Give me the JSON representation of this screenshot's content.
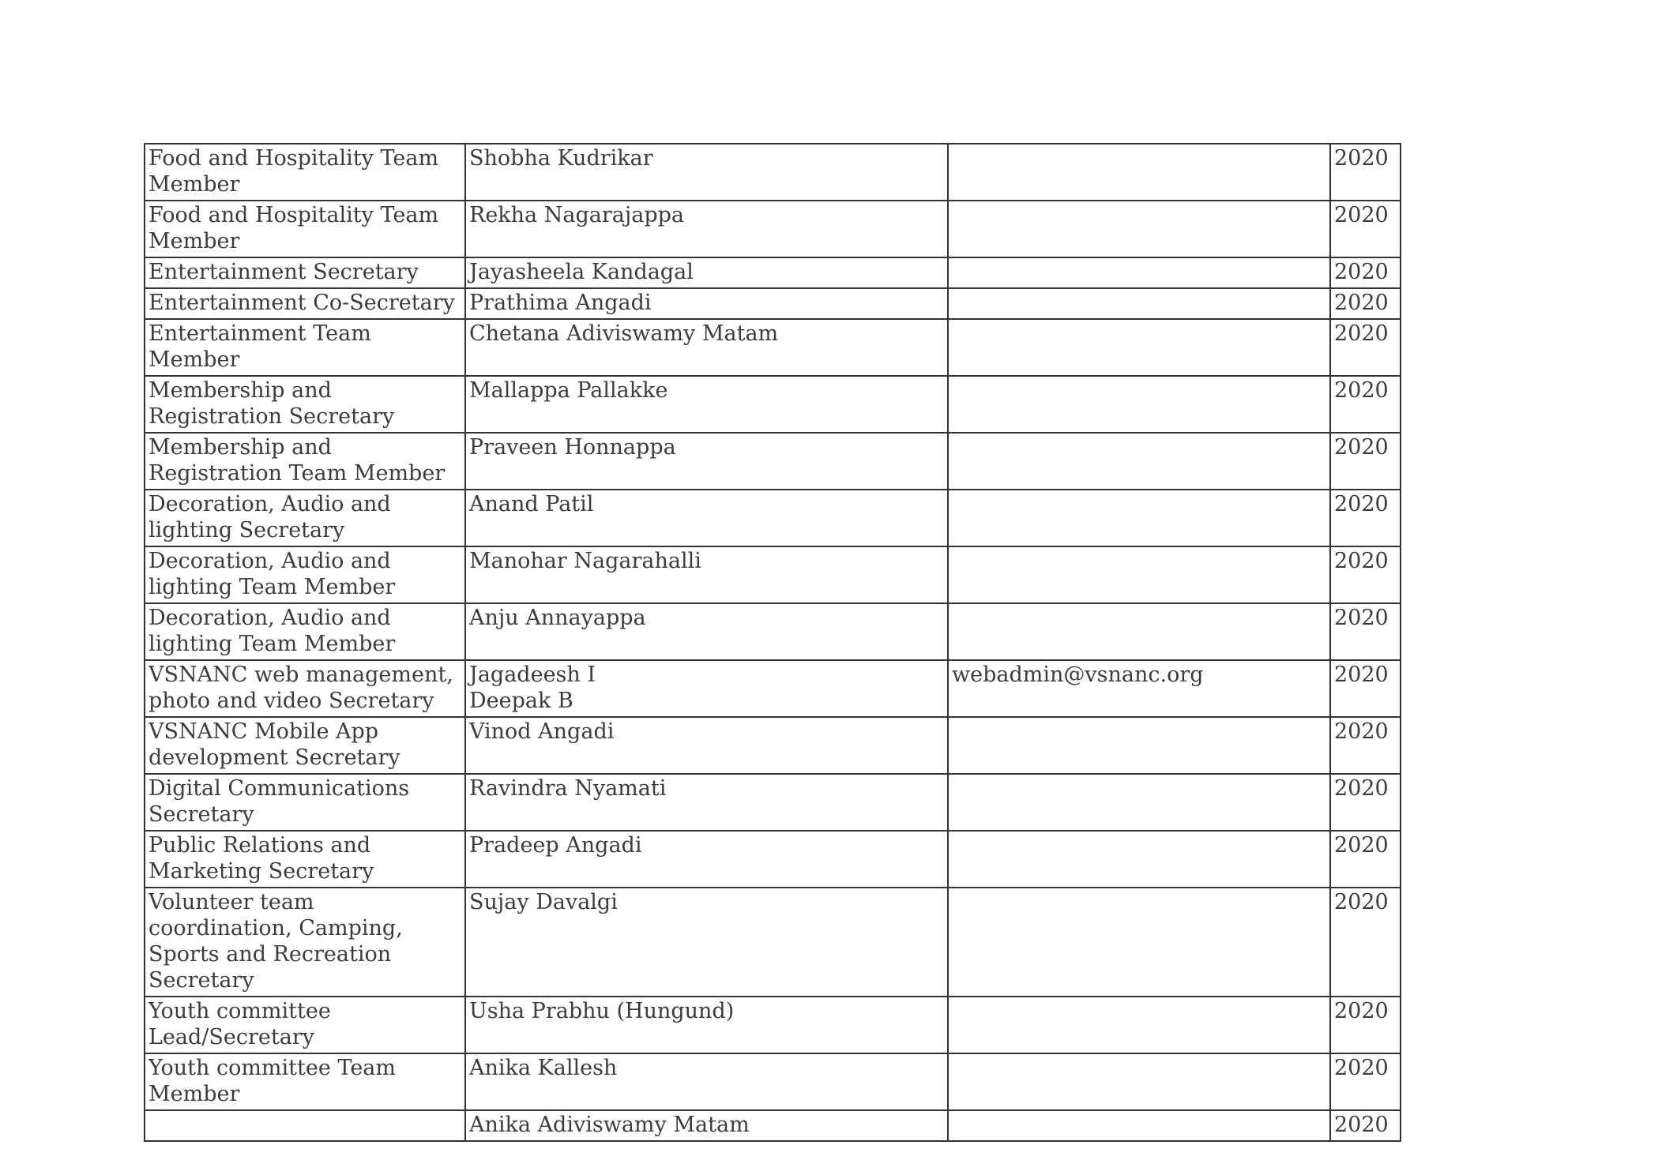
{
  "page": {
    "background_color": "#ffffff",
    "text_color": "#3c3c3c",
    "border_color": "#333333"
  },
  "table": {
    "columns": [
      "role",
      "name",
      "email",
      "year"
    ],
    "rows": [
      {
        "role": "Food and Hospitality Team Member",
        "name": "Shobha Kudrikar",
        "email": "",
        "year": "2020"
      },
      {
        "role": "Food and Hospitality Team Member",
        "name": "Rekha Nagarajappa",
        "email": "",
        "year": "2020"
      },
      {
        "role": "Entertainment Secretary",
        "name": "Jayasheela Kandagal",
        "email": "",
        "year": "2020"
      },
      {
        "role": "Entertainment Co-Secretary",
        "name": "Prathima Angadi",
        "email": "",
        "year": "2020"
      },
      {
        "role": "Entertainment Team Member",
        "name": "Chetana Adiviswamy Matam",
        "email": "",
        "year": "2020"
      },
      {
        "role": "Membership and Registration Secretary",
        "name": "Mallappa Pallakke",
        "email": "",
        "year": "2020"
      },
      {
        "role": "Membership and Registration Team Member",
        "name": "Praveen Honnappa",
        "email": "",
        "year": "2020"
      },
      {
        "role": "Decoration, Audio and lighting Secretary",
        "name": "Anand Patil",
        "email": "",
        "year": "2020"
      },
      {
        "role": "Decoration, Audio and lighting Team Member",
        "name": "Manohar Nagarahalli",
        "email": "",
        "year": "2020"
      },
      {
        "role": "Decoration, Audio and lighting Team Member",
        "name": "Anju Annayappa",
        "email": "",
        "year": "2020"
      },
      {
        "role": "VSNANC web management, photo and video Secretary",
        "name": "Jagadeesh I\nDeepak B",
        "email": "webadmin@vsnanc.org",
        "year": "2020"
      },
      {
        "role": "VSNANC Mobile App development Secretary",
        "name": "Vinod Angadi",
        "email": "",
        "year": "2020"
      },
      {
        "role": "Digital Communications Secretary",
        "name": "Ravindra Nyamati",
        "email": "",
        "year": "2020"
      },
      {
        "role": "Public Relations and Marketing Secretary",
        "name": "Pradeep Angadi",
        "email": "",
        "year": "2020"
      },
      {
        "role": "Volunteer team coordination, Camping, Sports and Recreation Secretary",
        "name": "Sujay Davalgi",
        "email": "",
        "year": "2020"
      },
      {
        "role": "Youth committee Lead/Secretary",
        "name": "Usha Prabhu (Hungund)",
        "email": "",
        "year": "2020"
      },
      {
        "role": "Youth committee Team Member",
        "name": "Anika Kallesh",
        "email": "",
        "year": "2020"
      },
      {
        "role": "",
        "name": "Anika Adiviswamy Matam",
        "email": "",
        "year": "2020"
      }
    ]
  }
}
